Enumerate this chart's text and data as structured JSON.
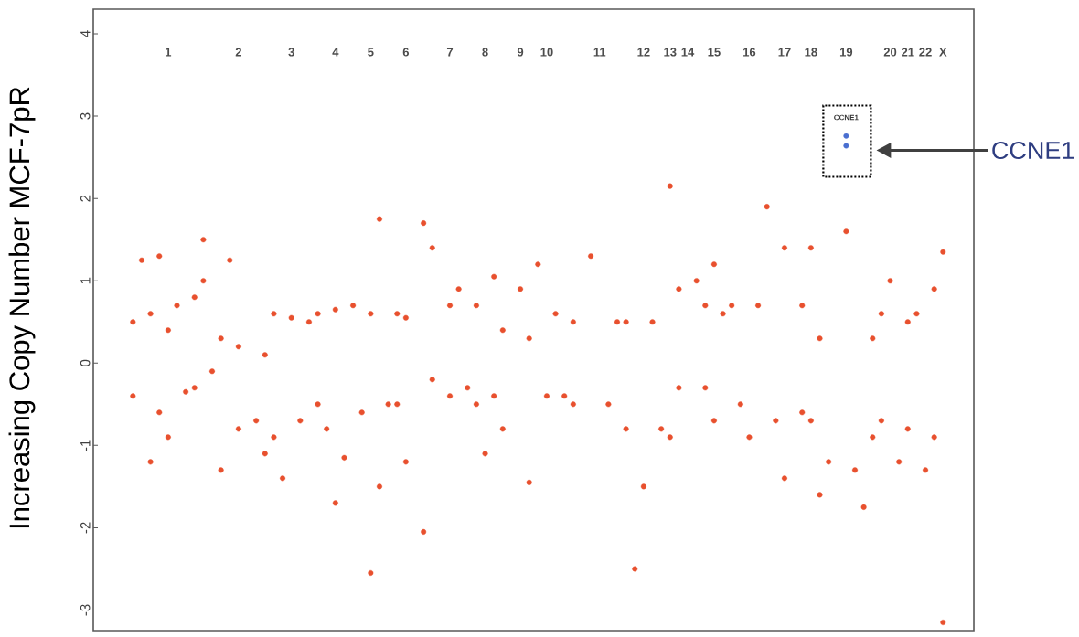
{
  "chart_data": {
    "type": "scatter",
    "ylabel": "Increasing Copy Number MCF-7pR",
    "ylim": [
      -3.25,
      4.3
    ],
    "yticks": [
      -3,
      -2,
      -1,
      0,
      1,
      2,
      3,
      4
    ],
    "categories": [
      null,
      null,
      null,
      null,
      null,
      null,
      null,
      null,
      "1",
      null,
      null,
      null,
      null,
      null,
      null,
      null,
      "2",
      null,
      null,
      null,
      null,
      null,
      "3",
      null,
      null,
      null,
      null,
      "4",
      null,
      null,
      null,
      "5",
      null,
      null,
      null,
      "6",
      null,
      null,
      null,
      null,
      "7",
      null,
      null,
      null,
      "8",
      null,
      null,
      null,
      "9",
      null,
      null,
      "10",
      null,
      null,
      null,
      null,
      null,
      "11",
      null,
      null,
      null,
      null,
      "12",
      null,
      null,
      "13",
      null,
      "14",
      null,
      null,
      "15",
      null,
      null,
      null,
      "16",
      null,
      null,
      null,
      "17",
      null,
      null,
      "18",
      null,
      null,
      null,
      "19",
      null,
      null,
      null,
      null,
      "20",
      null,
      "21",
      null,
      "22",
      null,
      "X",
      null,
      null,
      null
    ],
    "series": [
      {
        "color": "#e8502e",
        "values": [
          null,
          null,
          null,
          null,
          0.5,
          1.25,
          0.6,
          1.3,
          0.4,
          0.7,
          null,
          0.8,
          1.5,
          null,
          0.3,
          1.25,
          0.2,
          null,
          null,
          0.1,
          0.6,
          null,
          0.55,
          null,
          0.5,
          0.6,
          null,
          0.65,
          null,
          0.7,
          null,
          0.6,
          1.75,
          null,
          0.6,
          0.55,
          null,
          1.7,
          1.4,
          null,
          0.7,
          0.9,
          null,
          0.7,
          null,
          1.05,
          0.4,
          null,
          0.9,
          0.3,
          1.2,
          null,
          0.6,
          null,
          0.5,
          null,
          1.3,
          null,
          null,
          0.5,
          0.5,
          null,
          null,
          0.5,
          null,
          2.15,
          0.9,
          null,
          1.0,
          0.7,
          1.2,
          0.6,
          0.7,
          null,
          null,
          0.7,
          1.9,
          null,
          1.4,
          null,
          0.7,
          1.4,
          0.3,
          null,
          null,
          1.6,
          null,
          null,
          0.3,
          0.6,
          1.0,
          null,
          0.5,
          0.6,
          null,
          0.9,
          1.35,
          null,
          null,
          null
        ]
      },
      {
        "color": "#e8502e",
        "values": [
          null,
          null,
          null,
          null,
          -0.4,
          null,
          -1.2,
          -0.6,
          -0.9,
          null,
          -0.35,
          -0.3,
          1.0,
          -0.1,
          -1.3,
          null,
          -0.8,
          null,
          -0.7,
          -1.1,
          -0.9,
          -1.4,
          null,
          -0.7,
          null,
          -0.5,
          -0.8,
          -1.7,
          -1.15,
          null,
          -0.6,
          -2.55,
          -1.5,
          -0.5,
          -0.5,
          -1.2,
          null,
          -2.05,
          -0.2,
          null,
          -0.4,
          null,
          -0.3,
          -0.5,
          -1.1,
          -0.4,
          -0.8,
          null,
          null,
          -1.45,
          null,
          -0.4,
          null,
          -0.4,
          -0.5,
          null,
          null,
          null,
          -0.5,
          null,
          -0.8,
          -2.5,
          -1.5,
          null,
          -0.8,
          -0.9,
          -0.3,
          null,
          null,
          -0.3,
          -0.7,
          null,
          null,
          -0.5,
          -0.9,
          null,
          null,
          -0.7,
          -1.4,
          null,
          -0.6,
          -0.7,
          -1.6,
          -1.2,
          null,
          null,
          -1.3,
          -1.75,
          -0.9,
          -0.7,
          null,
          -1.2,
          -0.8,
          null,
          -1.3,
          -0.9,
          -3.15,
          null,
          null,
          null
        ]
      },
      {
        "color": "#4a6fd0",
        "values": [
          null,
          null,
          null,
          null,
          null,
          null,
          null,
          null,
          null,
          null,
          null,
          null,
          null,
          null,
          null,
          null,
          null,
          null,
          null,
          null,
          null,
          null,
          null,
          null,
          null,
          null,
          null,
          null,
          null,
          null,
          null,
          null,
          null,
          null,
          null,
          null,
          null,
          null,
          null,
          null,
          null,
          null,
          null,
          null,
          null,
          null,
          null,
          null,
          null,
          null,
          null,
          null,
          null,
          null,
          null,
          null,
          null,
          null,
          null,
          null,
          null,
          null,
          null,
          null,
          null,
          null,
          null,
          null,
          null,
          null,
          null,
          null,
          null,
          null,
          null,
          null,
          null,
          null,
          null,
          null,
          null,
          null,
          null,
          null,
          null,
          2.76,
          null,
          null,
          null,
          null,
          null,
          null,
          null,
          null,
          null,
          null,
          null,
          null,
          null,
          null
        ]
      },
      {
        "color": "#4a6fd0",
        "values": [
          null,
          null,
          null,
          null,
          null,
          null,
          null,
          null,
          null,
          null,
          null,
          null,
          null,
          null,
          null,
          null,
          null,
          null,
          null,
          null,
          null,
          null,
          null,
          null,
          null,
          null,
          null,
          null,
          null,
          null,
          null,
          null,
          null,
          null,
          null,
          null,
          null,
          null,
          null,
          null,
          null,
          null,
          null,
          null,
          null,
          null,
          null,
          null,
          null,
          null,
          null,
          null,
          null,
          null,
          null,
          null,
          null,
          null,
          null,
          null,
          null,
          null,
          null,
          null,
          null,
          null,
          null,
          null,
          null,
          null,
          null,
          null,
          null,
          null,
          null,
          null,
          null,
          null,
          null,
          null,
          null,
          null,
          null,
          null,
          null,
          2.64,
          null,
          null,
          null,
          null,
          null,
          null,
          null,
          null,
          null,
          null,
          null,
          null,
          null,
          null
        ]
      }
    ],
    "annotations": [
      "CCNE1",
      "CCNE1"
    ]
  }
}
